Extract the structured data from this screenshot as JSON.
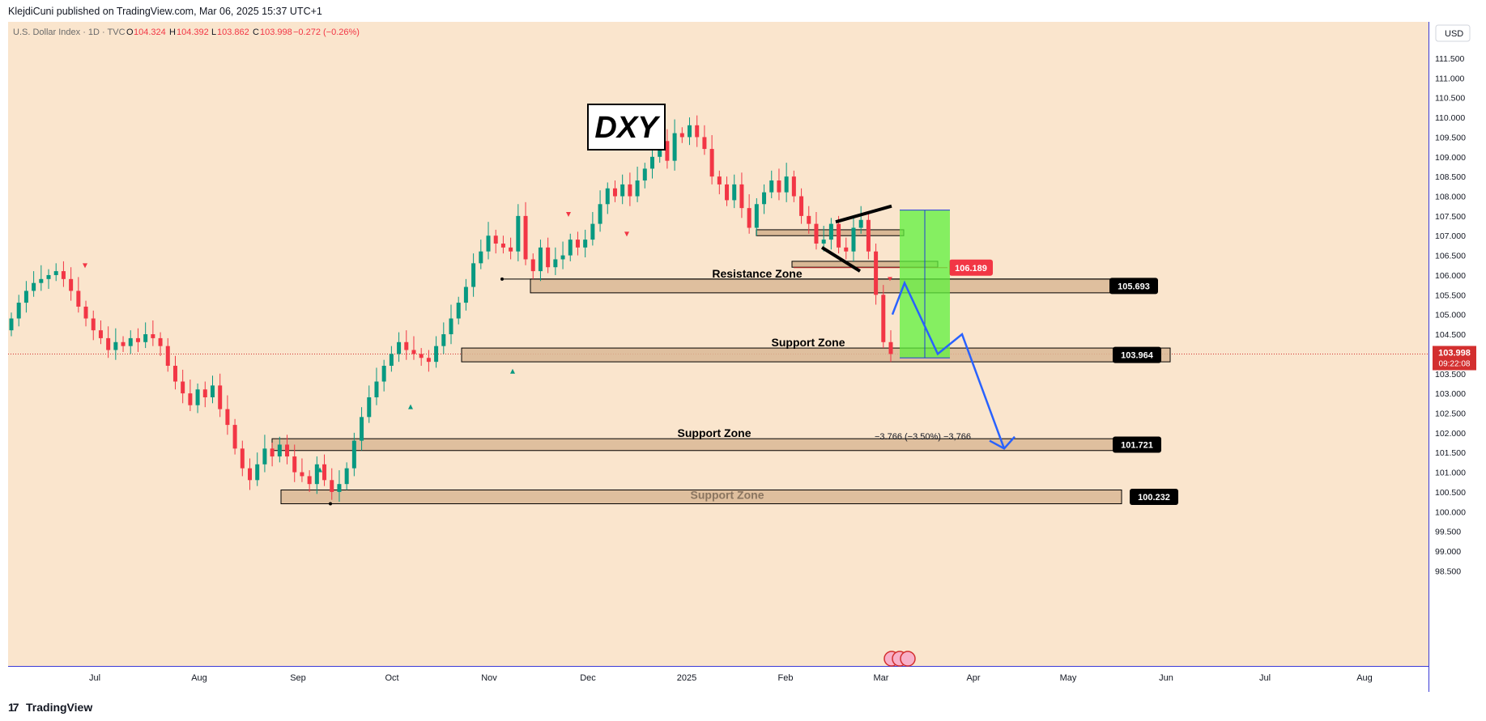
{
  "header": {
    "published": "KlejdiCuni published on TradingView.com, Mar 06, 2025 15:37 UTC+1"
  },
  "legend": {
    "symbol": "U.S. Dollar Index · 1D · TVC",
    "o_label": "O",
    "o_value": "104.324",
    "h_label": "H",
    "h_value": "104.392",
    "l_label": "L",
    "l_value": "103.862",
    "c_label": "C",
    "c_value": "103.998",
    "change": "−0.272 (−0.26%)"
  },
  "currency": "USD",
  "title_box": "DXY",
  "footer": {
    "brand": "TradingView"
  },
  "price_tag": {
    "value": "103.998",
    "countdown": "09:22:08"
  },
  "measure_label": "−3.766 (−3.50%) −3,766",
  "colors": {
    "background": "#fae5cd",
    "up": "#089981",
    "down": "#f23645",
    "zone_fill": "#d9b895",
    "target_fill": "#5ef23c",
    "arrow": "#2962ff",
    "label_bg": "#000000",
    "price_red": "#d32f2f"
  },
  "chart_data": {
    "type": "candlestick",
    "title": "DXY",
    "xlabel": "",
    "ylabel": "",
    "ylim": [
      98.5,
      111.8
    ],
    "x_ticks": [
      "Jul",
      "Aug",
      "Sep",
      "Oct",
      "Nov",
      "Dec",
      "2025",
      "Feb",
      "Mar",
      "Apr",
      "May",
      "Jun",
      "Jul",
      "Aug"
    ],
    "y_ticks": [
      "111.500",
      "111.000",
      "110.500",
      "110.000",
      "109.500",
      "109.000",
      "108.500",
      "108.000",
      "107.500",
      "107.000",
      "106.500",
      "106.000",
      "105.500",
      "105.000",
      "104.500",
      "104.000",
      "103.500",
      "103.000",
      "102.500",
      "102.000",
      "101.500",
      "101.000",
      "100.500",
      "100.000",
      "99.500",
      "99.000",
      "98.500"
    ],
    "closes": [
      104.9,
      105.3,
      105.6,
      105.8,
      105.9,
      106.0,
      106.1,
      105.9,
      105.6,
      105.2,
      104.9,
      104.6,
      104.4,
      104.1,
      104.3,
      104.2,
      104.4,
      104.3,
      104.5,
      104.4,
      104.2,
      103.7,
      103.3,
      103.0,
      102.7,
      103.1,
      102.9,
      103.2,
      102.6,
      102.2,
      101.6,
      101.1,
      100.8,
      101.2,
      101.6,
      101.4,
      101.7,
      101.4,
      101.0,
      100.9,
      100.7,
      101.2,
      100.8,
      100.5,
      100.7,
      101.1,
      101.8,
      102.4,
      102.9,
      103.3,
      103.7,
      104.0,
      104.3,
      104.1,
      104.0,
      103.9,
      103.8,
      104.2,
      104.5,
      104.9,
      105.3,
      105.7,
      106.3,
      106.6,
      107.0,
      106.8,
      106.7,
      106.6,
      107.5,
      106.4,
      106.1,
      106.7,
      106.2,
      106.4,
      106.5,
      106.9,
      106.7,
      106.9,
      107.3,
      107.8,
      108.2,
      108.0,
      108.3,
      108.0,
      108.4,
      108.7,
      109.0,
      109.4,
      108.9,
      109.6,
      109.5,
      109.8,
      109.5,
      109.2,
      108.5,
      108.3,
      107.9,
      108.3,
      107.7,
      107.2,
      107.8,
      108.1,
      108.4,
      108.1,
      108.5,
      108.0,
      107.5,
      107.3,
      106.8,
      106.9,
      107.3,
      106.7,
      106.6,
      107.2,
      107.4,
      106.6,
      105.5,
      104.3,
      103.998
    ],
    "zones": [
      {
        "label": "Resistance Zone",
        "top": 105.9,
        "bottom": 105.55,
        "price_label": "105.693"
      },
      {
        "label": "Support Zone",
        "top": 104.15,
        "bottom": 103.8,
        "price_label": "103.964"
      },
      {
        "label": "Support Zone",
        "top": 101.85,
        "bottom": 101.55,
        "price_label": "101.721"
      },
      {
        "label": "Support Zone",
        "top": 100.55,
        "bottom": 100.2,
        "price_label": "100.232"
      }
    ],
    "small_zones": [
      {
        "top": 107.15,
        "bottom": 107.0
      },
      {
        "top": 106.35,
        "bottom": 106.2,
        "price_label": "106.189"
      }
    ],
    "target": {
      "top": 107.65,
      "bottom": 103.9
    },
    "projection": [
      [
        105.0
      ],
      [
        105.7
      ],
      [
        104.0
      ],
      [
        104.5
      ],
      [
        101.6
      ]
    ]
  }
}
